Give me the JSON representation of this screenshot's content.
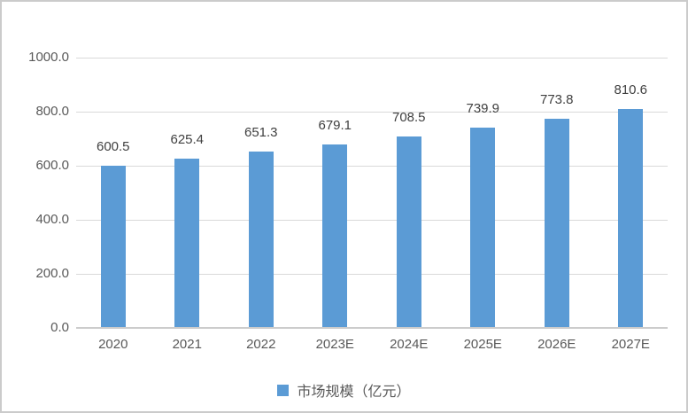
{
  "chart_data": {
    "type": "bar",
    "title": "",
    "categories": [
      "2020",
      "2021",
      "2022",
      "2023E",
      "2024E",
      "2025E",
      "2026E",
      "2027E"
    ],
    "series": [
      {
        "name": "市场规模（亿元）",
        "values": [
          600.5,
          625.4,
          651.3,
          679.1,
          708.5,
          739.9,
          773.8,
          810.6
        ],
        "data_labels": [
          "600.5",
          "625.4",
          "651.3",
          "679.1",
          "708.5",
          "739.9",
          "773.8",
          "810.6"
        ]
      }
    ],
    "xlabel": "",
    "ylabel": "",
    "ylim": [
      0,
      1000
    ],
    "y_ticks": [
      0,
      200,
      400,
      600,
      800,
      1000
    ],
    "y_tick_labels": [
      "0.0",
      "200.0",
      "400.0",
      "600.0",
      "800.0",
      "1000.0"
    ],
    "grid": "horizontal",
    "legend_position": "bottom"
  },
  "legend": {
    "label": "市场规模（亿元）"
  },
  "colors": {
    "bar": "#5B9BD5",
    "gridline": "#D9D9D9",
    "axis_line": "#CCCCCC",
    "axis_text": "#595959",
    "data_label_text": "#404040",
    "legend_text": "#595959",
    "frame_border": "#CBCBCB",
    "background": "#FFFFFF"
  }
}
